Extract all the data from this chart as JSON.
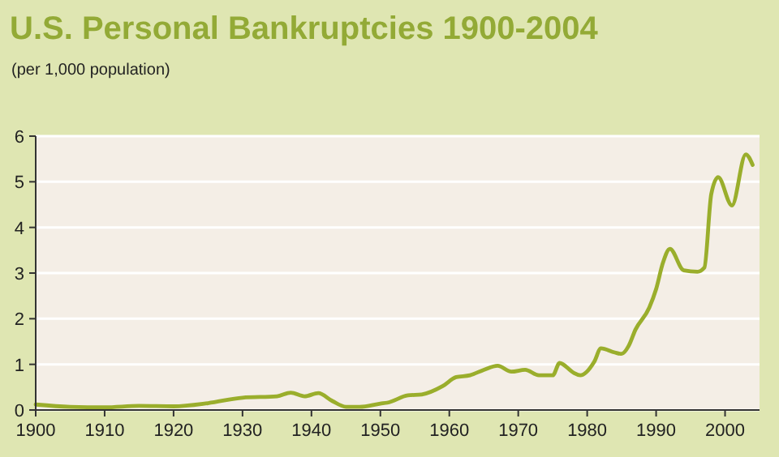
{
  "chart_data": {
    "type": "line",
    "title": "U.S. Personal Bankruptcies 1900-2004",
    "subtitle": "(per 1,000 population)",
    "x": [
      1900,
      1905,
      1910,
      1915,
      1920,
      1925,
      1930,
      1935,
      1937,
      1939,
      1941,
      1943,
      1945,
      1947,
      1950,
      1951,
      1954,
      1956,
      1959,
      1961,
      1963,
      1965,
      1967,
      1969,
      1971,
      1973,
      1975,
      1976,
      1978,
      1979,
      1981,
      1982,
      1984,
      1985,
      1986,
      1987,
      1989,
      1990,
      1991,
      1992,
      1994,
      1996,
      1997,
      1998,
      1999,
      2001,
      2003,
      2004
    ],
    "series": [
      {
        "color": "#9aae2c",
        "values": [
          0.12,
          0.07,
          0.06,
          0.09,
          0.08,
          0.15,
          0.27,
          0.3,
          0.38,
          0.3,
          0.37,
          0.2,
          0.07,
          0.07,
          0.14,
          0.16,
          0.32,
          0.34,
          0.52,
          0.72,
          0.76,
          0.88,
          0.97,
          0.84,
          0.88,
          0.76,
          0.76,
          1.03,
          0.82,
          0.76,
          1.05,
          1.35,
          1.26,
          1.23,
          1.4,
          1.76,
          2.24,
          2.65,
          3.23,
          3.53,
          3.06,
          3.03,
          3.12,
          4.73,
          5.1,
          4.48,
          5.6,
          5.37
        ]
      }
    ],
    "xlim": [
      1900,
      2005
    ],
    "ylim": [
      0,
      6
    ],
    "xticks": [
      1900,
      1910,
      1920,
      1930,
      1940,
      1950,
      1960,
      1970,
      1980,
      1990,
      2000
    ],
    "yticks": [
      0,
      1,
      2,
      3,
      4,
      5,
      6
    ],
    "grid": "y"
  }
}
